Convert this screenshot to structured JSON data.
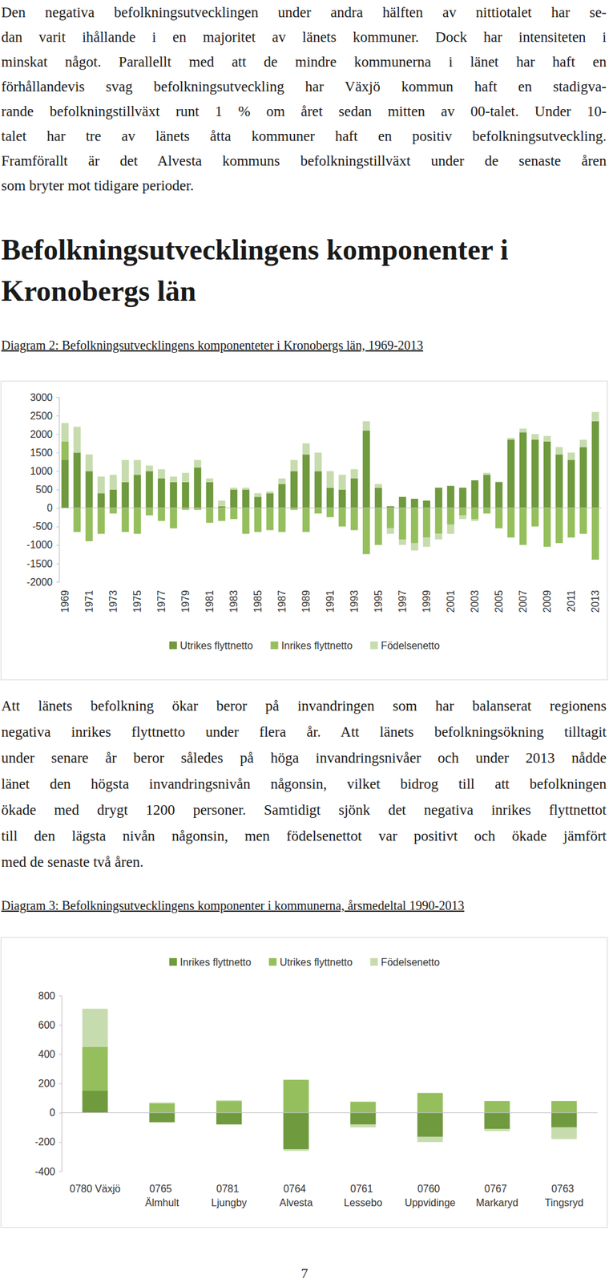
{
  "text": {
    "paragraph_1": [
      "Den negativa befolkningsutvecklingen under andra hälften av nittiotalet har se-",
      "dan varit ihållande i en majoritet av länets kommuner. Dock har intensiteten i",
      "minskat något. Parallellt med att de mindre kommunerna i länet har haft en",
      "förhållandevis svag befolkningsutveckling har Växjö kommun haft en stadigva-",
      "rande befolkningstillväxt runt 1 % om året sedan mitten av 00-talet. Under 10-",
      "talet har tre av länets åtta kommuner haft en positiv befolkningsutveckling.",
      "Framförallt är det Alvesta kommuns befolkningstillväxt under de senaste åren",
      "som bryter mot tidigare perioder."
    ],
    "heading": [
      "Befolkningsutvecklingens komponenter i",
      "Kronobergs län"
    ],
    "paragraph_2": [
      "Att länets befolkning ökar beror på invandringen som har balanserat regionens",
      "negativa inrikes flyttnetto under flera år. Att länets befolkningsökning tilltagit",
      "under senare år beror således på höga invandringsnivåer och under 2013 nådde",
      "länet den högsta invandringsnivån någonsin, vilket bidrog till att befolkningen",
      "ökade med drygt 1200 personer. Samtidigt sjönk det negativa inrikes flyttnettot",
      "till den lägsta nivån någonsin, men födelsenettot var positivt och ökade jämfört",
      "med de senaste två åren."
    ],
    "page_number": 7
  },
  "chart_data": [
    {
      "type": "bar",
      "title": "Diagram 2: Befolkningsutvecklingens komponenteter i Kronobergs län, 1969-2013",
      "stacked": true,
      "grid": false,
      "legend": "bottom",
      "categories": [
        "1969",
        null,
        "1971",
        null,
        "1973",
        null,
        "1975",
        null,
        "1977",
        null,
        "1979",
        null,
        "1981",
        null,
        "1983",
        null,
        "1985",
        null,
        "1987",
        null,
        "1989",
        null,
        "1991",
        null,
        "1993",
        null,
        "1995",
        null,
        "1997",
        null,
        "1999",
        null,
        "2001",
        null,
        "2003",
        null,
        "2005",
        null,
        "2007",
        null,
        "2009",
        null,
        "2011",
        null,
        "2013"
      ],
      "series": [
        {
          "name": "Utrikes flyttnetto",
          "color": "#6f9a3e",
          "values": [
            1300,
            1500,
            1000,
            400,
            500,
            700,
            900,
            1000,
            800,
            700,
            700,
            1100,
            700,
            50,
            500,
            500,
            300,
            400,
            650,
            1000,
            1450,
            1000,
            550,
            500,
            800,
            2100,
            550,
            50,
            300,
            250,
            200,
            550,
            600,
            550,
            750,
            900,
            700,
            1850,
            2050,
            1850,
            1800,
            1450,
            1300,
            1650,
            2350
          ]
        },
        {
          "name": "Inrikes flyttnetto",
          "color": "#95bf5c",
          "values": [
            500,
            -650,
            -900,
            -700,
            -150,
            -650,
            -700,
            -200,
            -350,
            -550,
            -50,
            -50,
            -400,
            -350,
            -300,
            -700,
            -650,
            -600,
            -650,
            -50,
            -650,
            -150,
            -250,
            -500,
            -600,
            -1250,
            -1000,
            -550,
            -850,
            -950,
            -800,
            -700,
            -450,
            -200,
            -300,
            -150,
            -550,
            -800,
            -1000,
            -500,
            -1050,
            -950,
            -800,
            -700,
            -1400
          ]
        },
        {
          "name": "Födelsenetto",
          "color": "#c7dcae",
          "values": [
            500,
            700,
            450,
            450,
            400,
            600,
            400,
            150,
            250,
            150,
            250,
            200,
            100,
            150,
            50,
            50,
            100,
            50,
            150,
            300,
            300,
            500,
            450,
            400,
            250,
            250,
            100,
            -150,
            -150,
            -200,
            -250,
            -150,
            -250,
            -100,
            -50,
            50,
            20,
            50,
            100,
            150,
            150,
            200,
            200,
            200,
            250
          ]
        }
      ],
      "ylim": [
        -2000,
        3000
      ],
      "yticks": [
        -2000,
        -1500,
        -1000,
        -500,
        0,
        500,
        1000,
        1500,
        2000,
        2500,
        3000
      ]
    },
    {
      "type": "bar",
      "title": "Diagram 3: Befolkningsutvecklingens komponenter i kommunerna, årsmedeltal 1990-2013",
      "stacked": true,
      "grid": false,
      "legend": "top",
      "categories": [
        "0780 Växjö",
        "0765 Älmhult",
        "0781 Ljungby",
        "0764 Alvesta",
        "0761 Lessebo",
        "0760 Uppvidinge",
        "0767 Markaryd",
        "0763 Tingsryd"
      ],
      "series": [
        {
          "name": "Inrikes flyttnetto",
          "color": "#6f9a3e",
          "values": [
            150,
            -65,
            -80,
            -250,
            -80,
            -165,
            -110,
            -100
          ]
        },
        {
          "name": "Utrikes flyttnetto",
          "color": "#95bf5c",
          "values": [
            300,
            65,
            80,
            225,
            75,
            135,
            80,
            80
          ]
        },
        {
          "name": "Födelsenetto",
          "color": "#c7dcae",
          "values": [
            260,
            5,
            5,
            -10,
            -20,
            -35,
            -15,
            -80
          ]
        }
      ],
      "ylim": [
        -400,
        800
      ],
      "yticks": [
        -400,
        -200,
        0,
        200,
        400,
        600,
        800
      ]
    }
  ]
}
